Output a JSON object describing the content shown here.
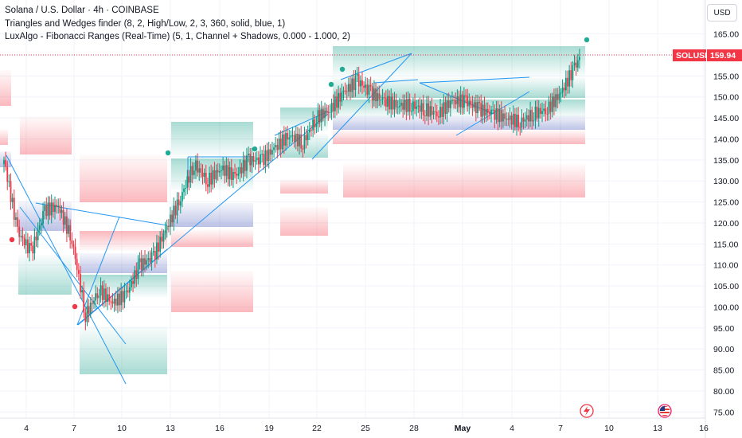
{
  "legend": {
    "line1": "Solana / U.S. Dollar · 4h · COINBASE",
    "line2": "Triangles and Wedges finder (8, 2, High/Low, 2, 3, 360, solid, blue, 1)",
    "line3": "LuxAlgo - Fibonacci Ranges (Real-Time) (5, 1, Channel + Shadows, 0.000 - 1.000, 2)"
  },
  "currency": "USD",
  "symbol_tag": "SOLUSD",
  "last_price": "159.94",
  "colors": {
    "up": "#089981",
    "down": "#f23645",
    "pattern": "#2196f3",
    "marker": "#22ab94"
  },
  "chart_data": {
    "type": "candlestick",
    "y_axis": {
      "ticks": [
        "165.00",
        "160.00",
        "155.00",
        "150.00",
        "145.00",
        "140.00",
        "135.00",
        "130.00",
        "125.00",
        "120.00",
        "115.00",
        "110.00",
        "105.00",
        "100.00",
        "95.00",
        "90.00",
        "85.00",
        "80.00",
        "75.00"
      ],
      "range": [
        73,
        168
      ]
    },
    "x_axis": {
      "ticks": [
        "4",
        "7",
        "10",
        "13",
        "16",
        "19",
        "22",
        "25",
        "28",
        "May",
        "4",
        "7",
        "10",
        "13",
        "16"
      ]
    },
    "close_path": [
      [
        0,
        135
      ],
      [
        2,
        118
      ],
      [
        4,
        113
      ],
      [
        6,
        123
      ],
      [
        8,
        124
      ],
      [
        10,
        116
      ],
      [
        12,
        98
      ],
      [
        14,
        104
      ],
      [
        16,
        101
      ],
      [
        18,
        103
      ],
      [
        20,
        110
      ],
      [
        22,
        112
      ],
      [
        24,
        119
      ],
      [
        26,
        126
      ],
      [
        28,
        134
      ],
      [
        30,
        130
      ],
      [
        32,
        133
      ],
      [
        34,
        131
      ],
      [
        36,
        135
      ],
      [
        38,
        135
      ],
      [
        40,
        138
      ],
      [
        42,
        141
      ],
      [
        44,
        139
      ],
      [
        46,
        145
      ],
      [
        48,
        147
      ],
      [
        50,
        151
      ],
      [
        52,
        154
      ],
      [
        54,
        151
      ],
      [
        56,
        149
      ],
      [
        58,
        148
      ],
      [
        60,
        148
      ],
      [
        62,
        147
      ],
      [
        64,
        146
      ],
      [
        66,
        149
      ],
      [
        68,
        149
      ],
      [
        70,
        147
      ],
      [
        72,
        146
      ],
      [
        74,
        145
      ],
      [
        76,
        144
      ],
      [
        78,
        146
      ],
      [
        80,
        147
      ],
      [
        82,
        151
      ],
      [
        84,
        157
      ],
      [
        85,
        160
      ]
    ]
  }
}
